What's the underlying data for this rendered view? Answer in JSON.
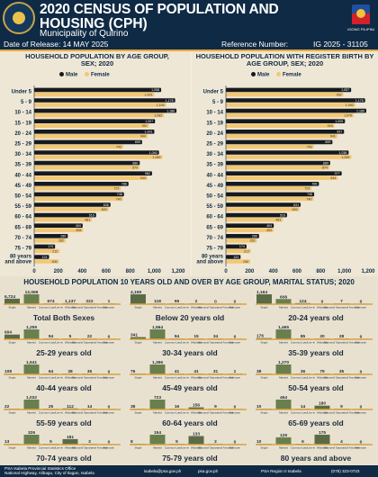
{
  "header": {
    "title_line1": "2020 CENSUS OF POPULATION AND",
    "title_line2": "HOUSING (CPH)",
    "subtitle": "Municipality of Quirino",
    "release": "Date of Release: 14 MAY 2025",
    "reference_label": "Reference Number:",
    "reference_number": "IG 2025 - 31105"
  },
  "legend": {
    "male": "Male",
    "female": "Female"
  },
  "colors": {
    "male": "#161a1e",
    "female": "#f2c875",
    "navy": "#0f2a44",
    "married_bar": "#6a7f4e"
  },
  "chart_data": [
    {
      "type": "bar",
      "title": "HOUSEHOLD POPULATION BY AGE GROUP, SEX; 2020",
      "categories": [
        "Under 5",
        "5 - 9",
        "10 - 14",
        "15 - 19",
        "20 - 24",
        "25 - 29",
        "30 - 34",
        "35 - 39",
        "40 - 44",
        "45 - 49",
        "50 - 54",
        "55 - 59",
        "60 - 64",
        "65 - 69",
        "70 - 74",
        "75 - 79",
        "80 years and above"
      ],
      "series": [
        {
          "name": "Male",
          "values": [
            1058,
            1175,
            1186,
            1007,
            1001,
            899,
            1040,
            880,
            982,
            786,
            748,
            636,
            516,
            404,
            280,
            174,
            124
          ]
        },
        {
          "name": "Female",
          "values": [
            1001,
            1100,
            1082,
            957,
            944,
            742,
            1069,
            879,
            944,
            723,
            740,
            620,
            481,
            408,
            262,
            212,
            206
          ]
        }
      ],
      "xlim": [
        0,
        1200
      ],
      "xticks": [
        "0",
        "200",
        "400",
        "600",
        "800",
        "1,000",
        "1,200"
      ],
      "orientation": "horizontal",
      "legend": "top"
    },
    {
      "type": "bar",
      "title": "HOUSEHOLD POPULATION WITH REGISTER BIRTH BY AGE GROUP, SEX; 2020",
      "categories": [
        "Under 5",
        "5 - 9",
        "10 - 14",
        "15 - 19",
        "20 - 24",
        "25 - 29",
        "30 - 34",
        "35 - 39",
        "40 - 44",
        "45 - 49",
        "50 - 54",
        "55 - 59",
        "60 - 64",
        "65 - 69",
        "70 - 74",
        "75 - 79",
        "80 years and above"
      ],
      "series": [
        {
          "name": "Male",
          "values": [
            1057,
            1175,
            1185,
            1005,
            997,
            899,
            1036,
            880,
            977,
            785,
            745,
            631,
            516,
            404,
            280,
            174,
            124
          ]
        },
        {
          "name": "Female",
          "values": [
            992,
            1092,
            1079,
            916,
            941,
            742,
            1059,
            874,
            944,
            723,
            740,
            620,
            481,
            403,
            262,
            212,
            206
          ]
        }
      ],
      "xlim": [
        0,
        1200
      ],
      "xticks": [
        "0",
        "200",
        "400",
        "600",
        "800",
        "1,000",
        "1,200"
      ],
      "orientation": "horizontal",
      "legend": "top"
    },
    {
      "type": "bar",
      "title": "HOUSEHOLD POPULATION 10 YEARS OLD AND OVER BY AGE GROUP, MARITAL STATUS; 2020",
      "categories": [
        "Single",
        "Married",
        "Common Law/Live-in",
        "Widowed",
        "Divorced/Separated/Annulled",
        "Unknown"
      ],
      "groups": [
        {
          "name": "Total Both Sexes",
          "values": [
            6724,
            12069,
            674,
            1137,
            222,
            1
          ]
        },
        {
          "name": "Below 20 years old",
          "values": [
            4158,
            118,
            65,
            2,
            0,
            0
          ]
        },
        {
          "name": "20-24 years old",
          "values": [
            1164,
            608,
            124,
            0,
            7,
            0
          ]
        },
        {
          "name": "25-29 years old",
          "values": [
            604,
            1259,
            94,
            5,
            22,
            0
          ]
        },
        {
          "name": "30-34 years old",
          "values": [
            341,
            1564,
            94,
            15,
            34,
            0
          ]
        },
        {
          "name": "35-39 years old",
          "values": [
            176,
            1465,
            85,
            20,
            28,
            0
          ]
        },
        {
          "name": "40-44 years old",
          "values": [
            108,
            1541,
            64,
            38,
            35,
            0
          ]
        },
        {
          "name": "45-49 years old",
          "values": [
            76,
            1396,
            41,
            41,
            31,
            1
          ]
        },
        {
          "name": "50-54 years old",
          "values": [
            38,
            1270,
            36,
            79,
            35,
            0
          ]
        },
        {
          "name": "55-59 years old",
          "values": [
            22,
            1032,
            25,
            112,
            14,
            0
          ]
        },
        {
          "name": "60-64 years old",
          "values": [
            38,
            723,
            16,
            156,
            9,
            0
          ]
        },
        {
          "name": "65-69 years old",
          "values": [
            10,
            464,
            14,
            180,
            9,
            0
          ]
        },
        {
          "name": "70-74 years old",
          "values": [
            13,
            326,
            5,
            181,
            3,
            0
          ]
        },
        {
          "name": "75-79 years old",
          "values": [
            8,
            154,
            5,
            133,
            2,
            0
          ]
        },
        {
          "name": "80 years and above",
          "values": [
            10,
            129,
            6,
            175,
            4,
            0
          ]
        }
      ]
    }
  ],
  "footer": {
    "office": "PSA Isabela Provincial Statistics Office",
    "address": "National Highway, Alibagu, City of Ilagan, Isabela",
    "email": "isabela@psa.gov.ph",
    "website": "psa.gov.ph",
    "facebook": "PSA Region II Isabela",
    "phone": "(078) 323-0733"
  }
}
